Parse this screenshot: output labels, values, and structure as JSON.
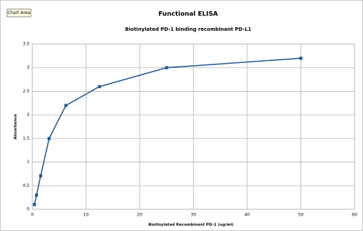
{
  "chart_data": {
    "type": "line",
    "title": "Functional ELISA",
    "subtitle": "Biotinylated PD-1 binding recombinant PD-L1",
    "tooltip": "Chart Area",
    "x_label": "Biotinylated Recombinant PD-1 (ug/ml)",
    "y_label": "Absorbance",
    "x": [
      0.39,
      0.78,
      1.56,
      3.13,
      6.25,
      12.5,
      25,
      50
    ],
    "series": [
      {
        "name": "Absorbance",
        "color": "#1f5b94",
        "values": [
          0.1,
          0.3,
          0.71,
          1.5,
          2.2,
          2.6,
          3.0,
          3.2
        ]
      }
    ],
    "xlim": [
      0,
      60
    ],
    "xticks": [
      0,
      10,
      20,
      30,
      40,
      50,
      60
    ],
    "ylim": [
      0,
      3.5
    ],
    "yticks": [
      0,
      0.5,
      1,
      1.5,
      2,
      2.5,
      3,
      3.5
    ],
    "grid": true,
    "legend": false
  }
}
